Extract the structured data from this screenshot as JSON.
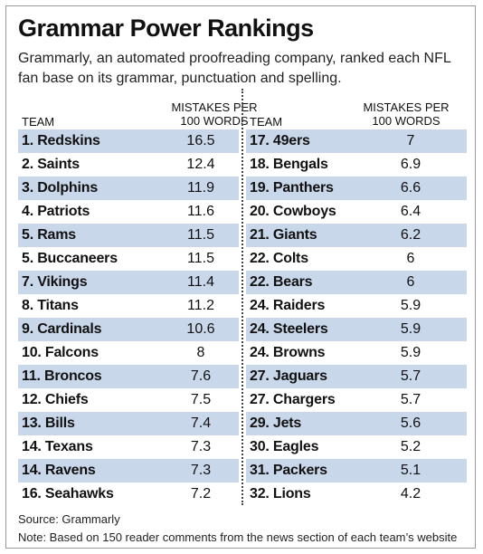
{
  "title": "Grammar Power Rankings",
  "subtitle": "Grammarly, an automated proofreading company, ranked each NFL fan base on its grammar, punctuation and spelling.",
  "column_headers": {
    "team": "TEAM",
    "value_line1": "MISTAKES PER",
    "value_line2": "100 WORDS"
  },
  "chart_data": {
    "type": "table",
    "title": "Grammar Power Rankings",
    "columns": [
      "TEAM",
      "MISTAKES PER 100 WORDS"
    ],
    "rows": [
      {
        "rank": "1.",
        "team": "Redskins",
        "value": "16.5"
      },
      {
        "rank": "2.",
        "team": "Saints",
        "value": "12.4"
      },
      {
        "rank": "3.",
        "team": "Dolphins",
        "value": "11.9"
      },
      {
        "rank": "4.",
        "team": "Patriots",
        "value": "11.6"
      },
      {
        "rank": "5.",
        "team": "Rams",
        "value": "11.5"
      },
      {
        "rank": "5.",
        "team": "Buccaneers",
        "value": "11.5"
      },
      {
        "rank": "7.",
        "team": "Vikings",
        "value": "11.4"
      },
      {
        "rank": "8.",
        "team": "Titans",
        "value": "11.2"
      },
      {
        "rank": "9.",
        "team": "Cardinals",
        "value": "10.6"
      },
      {
        "rank": "10.",
        "team": "Falcons",
        "value": "8"
      },
      {
        "rank": "11.",
        "team": "Broncos",
        "value": "7.6"
      },
      {
        "rank": "12.",
        "team": "Chiefs",
        "value": "7.5"
      },
      {
        "rank": "13.",
        "team": "Bills",
        "value": "7.4"
      },
      {
        "rank": "14.",
        "team": "Texans",
        "value": "7.3"
      },
      {
        "rank": "14.",
        "team": "Ravens",
        "value": "7.3"
      },
      {
        "rank": "16.",
        "team": "Seahawks",
        "value": "7.2"
      },
      {
        "rank": "17.",
        "team": "49ers",
        "value": "7"
      },
      {
        "rank": "18.",
        "team": "Bengals",
        "value": "6.9"
      },
      {
        "rank": "19.",
        "team": "Panthers",
        "value": "6.6"
      },
      {
        "rank": "20.",
        "team": "Cowboys",
        "value": "6.4"
      },
      {
        "rank": "21.",
        "team": "Giants",
        "value": "6.2"
      },
      {
        "rank": "22.",
        "team": "Colts",
        "value": "6"
      },
      {
        "rank": "22.",
        "team": "Bears",
        "value": "6"
      },
      {
        "rank": "24.",
        "team": "Raiders",
        "value": "5.9"
      },
      {
        "rank": "24.",
        "team": "Steelers",
        "value": "5.9"
      },
      {
        "rank": "24.",
        "team": "Browns",
        "value": "5.9"
      },
      {
        "rank": "27.",
        "team": "Jaguars",
        "value": "5.7"
      },
      {
        "rank": "27.",
        "team": "Chargers",
        "value": "5.7"
      },
      {
        "rank": "29.",
        "team": "Jets",
        "value": "5.6"
      },
      {
        "rank": "30.",
        "team": "Eagles",
        "value": "5.2"
      },
      {
        "rank": "31.",
        "team": "Packers",
        "value": "5.1"
      },
      {
        "rank": "32.",
        "team": "Lions",
        "value": "4.2"
      }
    ]
  },
  "colors": {
    "row_shade": "#c9d7ea",
    "text": "#111111",
    "border": "#9a9a9a"
  },
  "source": "Source: Grammarly",
  "note": "Note: Based on 150 reader comments from the news section of each team’s website"
}
